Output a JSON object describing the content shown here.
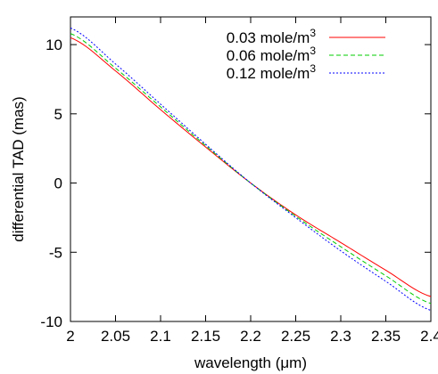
{
  "chart_data": {
    "type": "line",
    "xlabel": "wavelength (μm)",
    "ylabel": "differential TAD (mas)",
    "xlim": [
      2.0,
      2.4
    ],
    "ylim": [
      -10,
      12
    ],
    "x_ticks": [
      "2",
      "2.05",
      "2.1",
      "2.15",
      "2.2",
      "2.25",
      "2.3",
      "2.35",
      "2.4"
    ],
    "y_ticks": [
      "-10",
      "-5",
      "0",
      "5",
      "10"
    ],
    "grid": false,
    "legend_position": "top-right",
    "series": [
      {
        "name": "0.03 mole/m",
        "name_superscript": "3",
        "color": "#ff0000",
        "dash": "solid",
        "x": [
          2.0,
          2.05,
          2.1,
          2.15,
          2.2,
          2.25,
          2.3,
          2.35,
          2.4
        ],
        "y": [
          10.5,
          8.1,
          5.3,
          2.6,
          0.0,
          -2.3,
          -4.3,
          -6.3,
          -8.2
        ]
      },
      {
        "name": "0.06 mole/m",
        "name_superscript": "3",
        "color": "#00cc00",
        "dash": "dashed",
        "x": [
          2.0,
          2.05,
          2.1,
          2.15,
          2.2,
          2.25,
          2.3,
          2.35,
          2.4
        ],
        "y": [
          10.8,
          8.3,
          5.5,
          2.7,
          0.0,
          -2.4,
          -4.6,
          -6.7,
          -8.7
        ]
      },
      {
        "name": "0.12 mole/m",
        "name_superscript": "3",
        "color": "#0000ff",
        "dash": "dotted",
        "x": [
          2.0,
          2.05,
          2.1,
          2.15,
          2.2,
          2.25,
          2.3,
          2.35,
          2.4
        ],
        "y": [
          11.2,
          8.6,
          5.7,
          2.8,
          0.0,
          -2.5,
          -4.9,
          -7.1,
          -9.2
        ]
      }
    ]
  }
}
